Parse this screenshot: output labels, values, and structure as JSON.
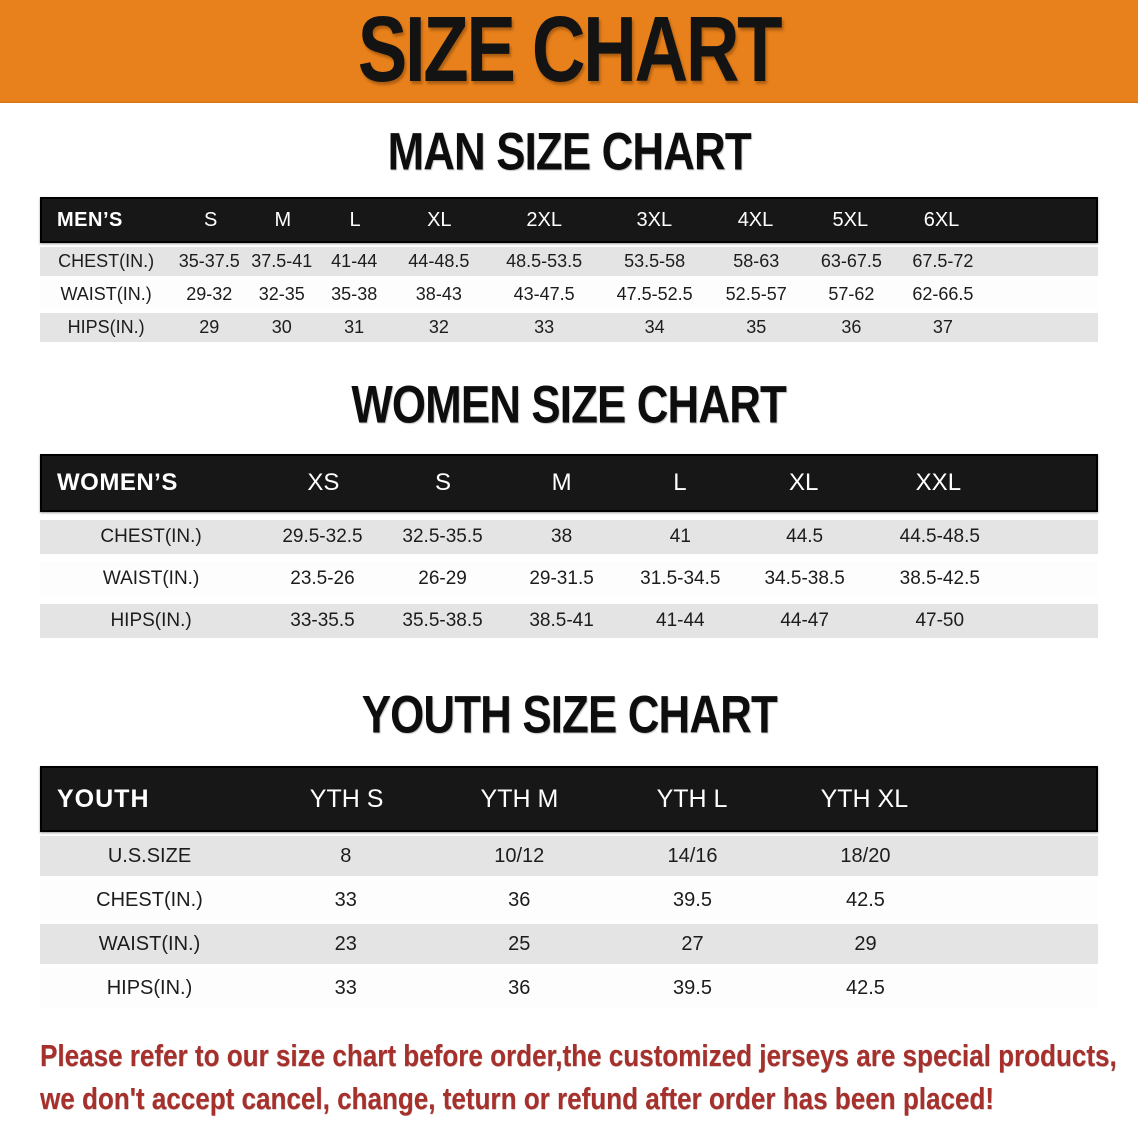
{
  "banner": {
    "title": "SIZE CHART"
  },
  "colors": {
    "banner_bg": "#E8811B",
    "table_header_bg": "#171717",
    "table_header_text": "#FFFFFF",
    "row_alt_bg": "#E4E4E4",
    "row_bg": "#FFFFFF",
    "heading_text": "#0D0D0D",
    "notice_text": "#A6302C"
  },
  "sections": [
    {
      "heading": "MAN SIZE CHART",
      "table": {
        "label": "MEN’S",
        "columns": [
          "S",
          "M",
          "L",
          "XL",
          "2XL",
          "3XL",
          "4XL",
          "5XL",
          "6XL"
        ],
        "rows": [
          {
            "label": "CHEST(IN.)",
            "values": [
              "35-37.5",
              "37.5-41",
              "41-44",
              "44-48.5",
              "48.5-53.5",
              "53.5-58",
              "58-63",
              "63-67.5",
              "67.5-72"
            ]
          },
          {
            "label": "WAIST(IN.)",
            "values": [
              "29-32",
              "32-35",
              "35-38",
              "38-43",
              "43-47.5",
              "47.5-52.5",
              "52.5-57",
              "57-62",
              "62-66.5"
            ]
          },
          {
            "label": "HIPS(IN.)",
            "values": [
              "29",
              "30",
              "31",
              "32",
              "33",
              "34",
              "35",
              "36",
              "37"
            ]
          }
        ]
      }
    },
    {
      "heading": "WOMEN SIZE CHART",
      "table": {
        "label": "WOMEN’S",
        "columns": [
          "XS",
          "S",
          "M",
          "L",
          "XL",
          "XXL"
        ],
        "rows": [
          {
            "label": "CHEST(IN.)",
            "values": [
              "29.5-32.5",
              "32.5-35.5",
              "38",
              "41",
              "44.5",
              "44.5-48.5"
            ]
          },
          {
            "label": "WAIST(IN.)",
            "values": [
              "23.5-26",
              "26-29",
              "29-31.5",
              "31.5-34.5",
              "34.5-38.5",
              "38.5-42.5"
            ]
          },
          {
            "label": "HIPS(IN.)",
            "values": [
              "33-35.5",
              "35.5-38.5",
              "38.5-41",
              "41-44",
              "44-47",
              "47-50"
            ]
          }
        ]
      }
    },
    {
      "heading": "YOUTH SIZE CHART",
      "table": {
        "label": "YOUTH",
        "columns": [
          "YTH S",
          "YTH M",
          "YTH L",
          "YTH XL"
        ],
        "rows": [
          {
            "label": "U.S.SIZE",
            "values": [
              "8",
              "10/12",
              "14/16",
              "18/20"
            ]
          },
          {
            "label": "CHEST(IN.)",
            "values": [
              "33",
              "36",
              "39.5",
              "42.5"
            ]
          },
          {
            "label": "WAIST(IN.)",
            "values": [
              "23",
              "25",
              "27",
              "29"
            ]
          },
          {
            "label": "HIPS(IN.)",
            "values": [
              "33",
              "36",
              "39.5",
              "42.5"
            ]
          }
        ]
      }
    }
  ],
  "footer": {
    "line1": "Please refer to our size chart before order,the customized jerseys are special products,",
    "line2": "we don't accept cancel, change, teturn or refund after order has been placed!"
  }
}
